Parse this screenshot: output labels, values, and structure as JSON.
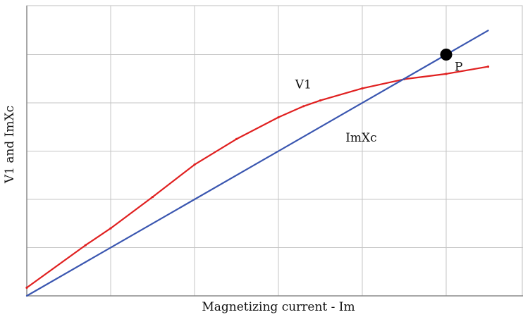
{
  "chart_data": {
    "type": "line",
    "xlabel": "Magnetizing current - Im",
    "ylabel": "V1 and ImXc",
    "xlim": [
      0,
      6
    ],
    "ylim": [
      0,
      6
    ],
    "grid": true,
    "x_grid_step": 1,
    "y_grid_step": 1,
    "series": [
      {
        "name": "V1",
        "color": "#e02020",
        "points": [
          [
            0,
            0.17
          ],
          [
            0.7,
            1.05
          ],
          [
            1.0,
            1.4
          ],
          [
            1.5,
            2.05
          ],
          [
            2.0,
            2.72
          ],
          [
            2.5,
            3.25
          ],
          [
            3.0,
            3.7
          ],
          [
            3.3,
            3.93
          ],
          [
            3.5,
            4.05
          ],
          [
            4.0,
            4.3
          ],
          [
            4.5,
            4.49
          ],
          [
            5.0,
            4.6
          ],
          [
            5.5,
            4.75
          ]
        ]
      },
      {
        "name": "ImXc",
        "color": "#3a56b0",
        "points": [
          [
            0,
            0
          ],
          [
            5.5,
            5.5
          ]
        ]
      }
    ],
    "annotations": [
      {
        "label": "P",
        "x": 5.0,
        "y": 5.0,
        "marker": "filled-circle",
        "color": "#000000"
      }
    ]
  }
}
